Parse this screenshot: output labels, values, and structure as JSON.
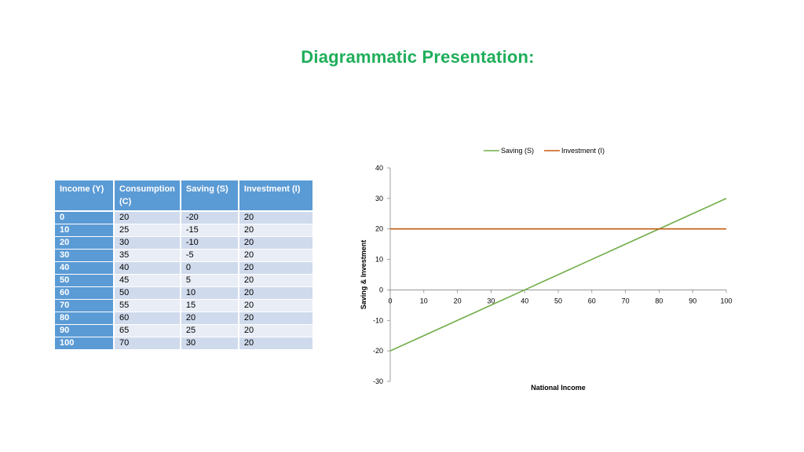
{
  "slide": {
    "title": "Diagrammatic Presentation:"
  },
  "table": {
    "headers": [
      "Income (Y)",
      "Consumption (C)",
      "Saving (S)",
      "Investment (I)"
    ],
    "rows": [
      [
        "0",
        "20",
        "-20",
        "20"
      ],
      [
        "10",
        "25",
        "-15",
        "20"
      ],
      [
        "20",
        "30",
        "-10",
        "20"
      ],
      [
        "30",
        "35",
        "-5",
        "20"
      ],
      [
        "40",
        "40",
        "0",
        "20"
      ],
      [
        "50",
        "45",
        "5",
        "20"
      ],
      [
        "60",
        "50",
        "10",
        "20"
      ],
      [
        "70",
        "55",
        "15",
        "20"
      ],
      [
        "80",
        "60",
        "20",
        "20"
      ],
      [
        "90",
        "65",
        "25",
        "20"
      ],
      [
        "100",
        "70",
        "30",
        "20"
      ]
    ]
  },
  "chart_data": {
    "type": "line",
    "xlabel": "National Income",
    "ylabel": "Saving & Investment",
    "x": [
      0,
      10,
      20,
      30,
      40,
      50,
      60,
      70,
      80,
      90,
      100
    ],
    "xlim": [
      0,
      100
    ],
    "ylim": [
      -30,
      40
    ],
    "xticks": [
      "0",
      "10",
      "20",
      "30",
      "40",
      "50",
      "60",
      "70",
      "80",
      "90",
      "100"
    ],
    "yticks": [
      "-30",
      "-20",
      "-10",
      "0",
      "10",
      "20",
      "30",
      "40"
    ],
    "grid": false,
    "legend_position": "top",
    "series": [
      {
        "name": "Saving (S)",
        "color": "#70ad47",
        "values": [
          -20,
          -15,
          -10,
          -5,
          0,
          5,
          10,
          15,
          20,
          25,
          30
        ]
      },
      {
        "name": "Investment (I)",
        "color": "#c55a11",
        "values": [
          20,
          20,
          20,
          20,
          20,
          20,
          20,
          20,
          20,
          20,
          20
        ]
      }
    ]
  }
}
